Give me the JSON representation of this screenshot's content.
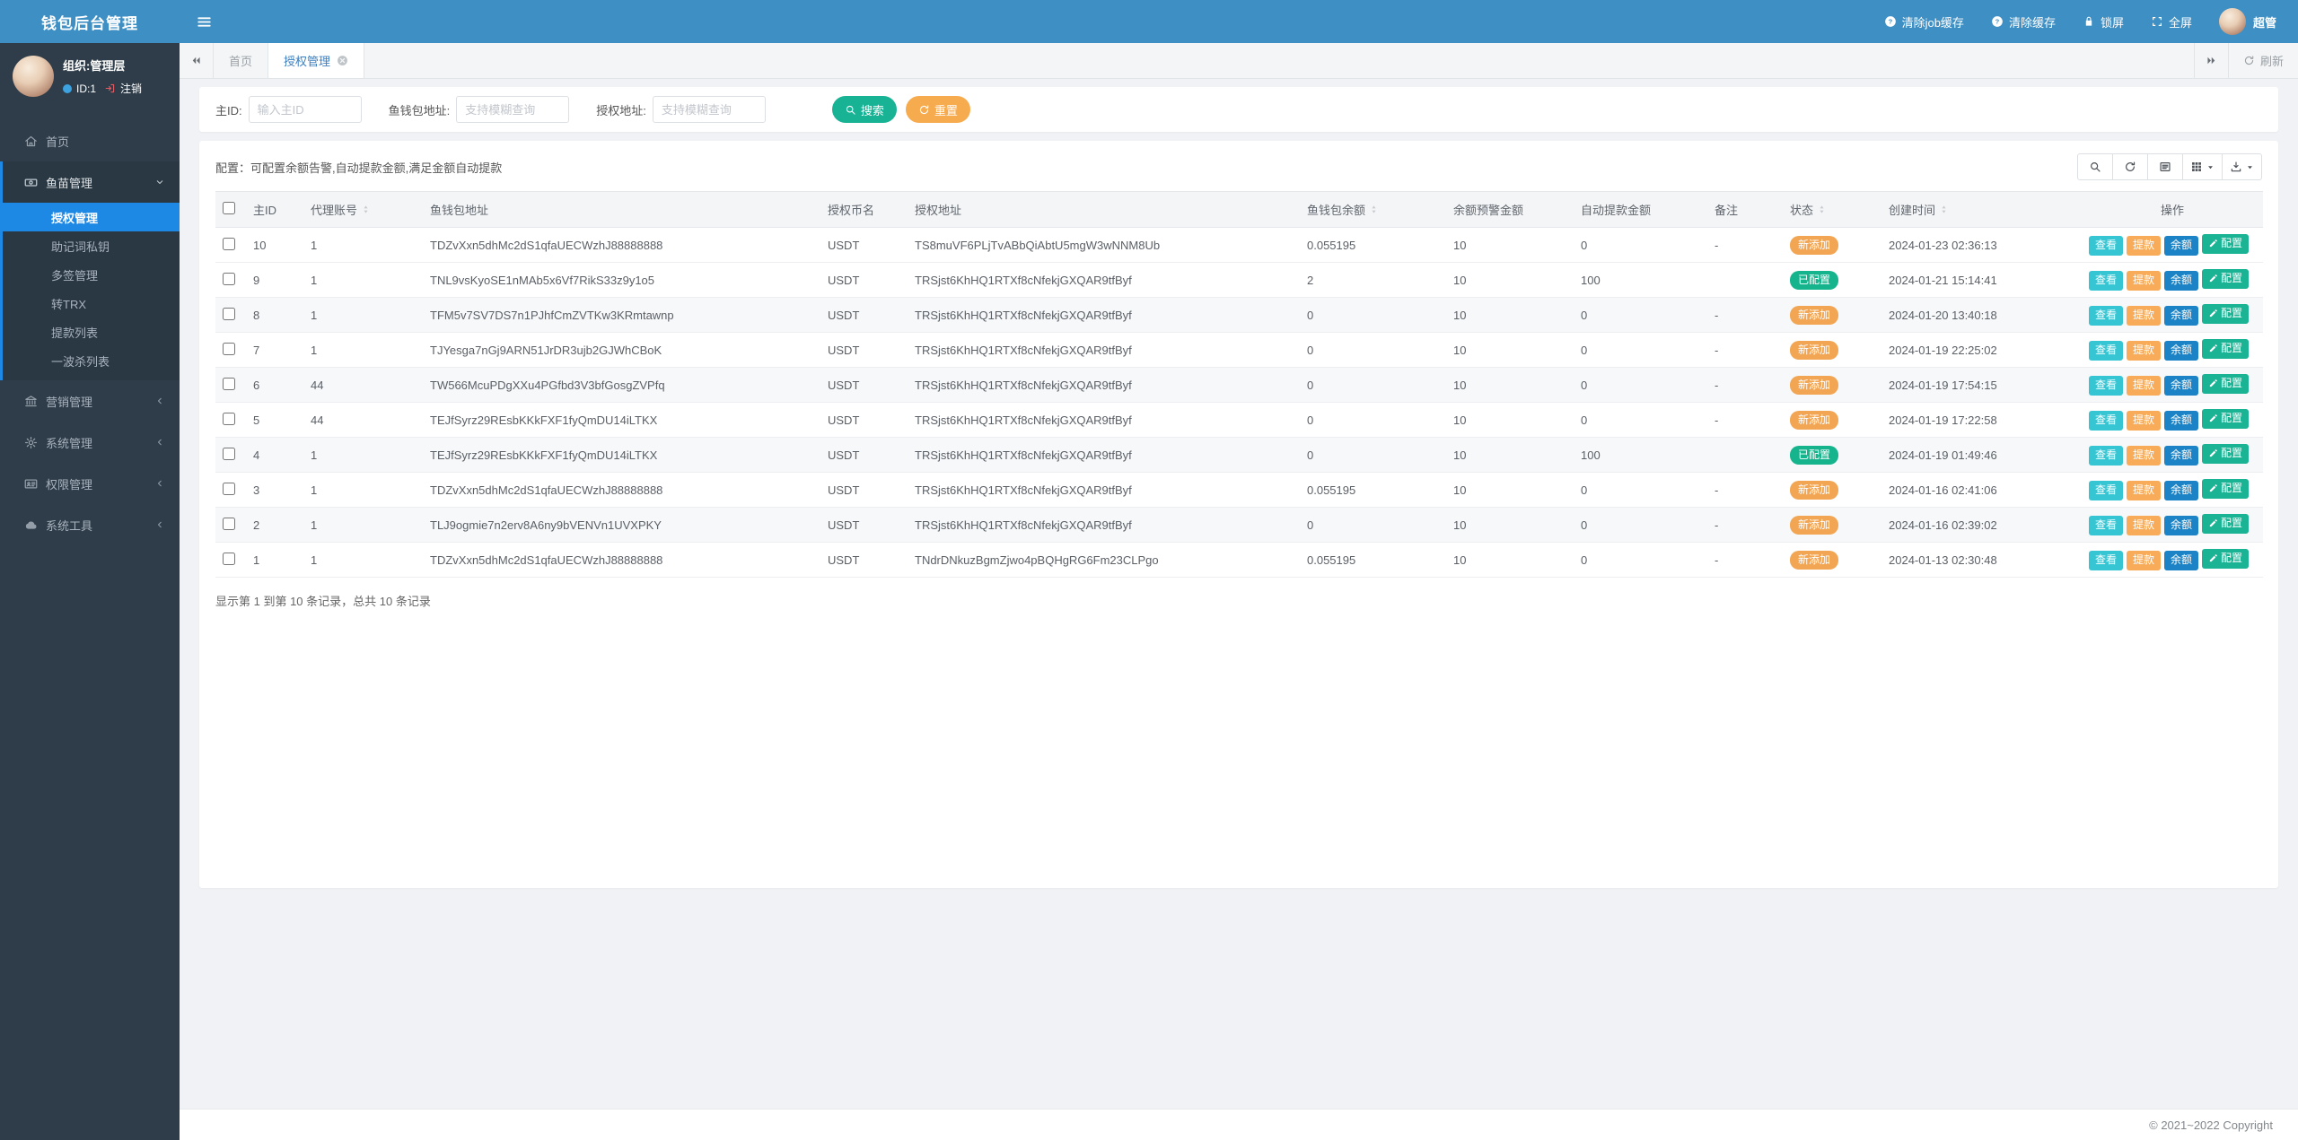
{
  "colors": {
    "navbar_blue": "#3d8fc4",
    "sidebar_dark": "#2e3d49",
    "menu_active_blue": "#1e88e5",
    "search_green": "#18b294",
    "reset_orange": "#f7ab4f",
    "badge_new_orange": "#f2a654",
    "badge_configured_green": "#15b48d",
    "op_view_teal": "#36c6d3",
    "op_withdraw_orange": "#f8ac59",
    "op_balance_blue": "#1c84c6",
    "op_config_green": "#1ab394"
  },
  "brand": {
    "title": "钱包后台管理"
  },
  "topbar": {
    "actions": [
      {
        "name": "clear-job-cache-button",
        "label": "清除job缓存",
        "icon": "question-circle-icon"
      },
      {
        "name": "clear-cache-button",
        "label": "清除缓存",
        "icon": "question-circle-icon"
      },
      {
        "name": "lock-screen-button",
        "label": "锁屏",
        "icon": "lock-icon"
      },
      {
        "name": "fullscreen-button",
        "label": "全屏",
        "icon": "expand-icon"
      }
    ],
    "username": "超管"
  },
  "sidebar": {
    "user": {
      "org": "组织:管理层",
      "id": "ID:1",
      "logout": "注销"
    },
    "menu": [
      {
        "name": "home",
        "label": "首页",
        "icon": "home-icon"
      },
      {
        "name": "fish-management",
        "label": "鱼苗管理",
        "icon": "money-icon",
        "expanded": true,
        "children": [
          {
            "name": "auth-management",
            "label": "授权管理",
            "active": true
          },
          {
            "name": "mnemonic-private-key",
            "label": "助记词私钥"
          },
          {
            "name": "multisig-management",
            "label": "多签管理"
          },
          {
            "name": "transfer-trx",
            "label": "转TRX"
          },
          {
            "name": "withdraw-list",
            "label": "提款列表"
          },
          {
            "name": "one-wave-kill-list",
            "label": "一波杀列表"
          }
        ]
      },
      {
        "name": "marketing-management",
        "label": "营销管理",
        "icon": "bank-icon"
      },
      {
        "name": "system-management",
        "label": "系统管理",
        "icon": "gear-icon"
      },
      {
        "name": "permission-management",
        "label": "权限管理",
        "icon": "idcard-icon"
      },
      {
        "name": "system-tools",
        "label": "系统工具",
        "icon": "cloud-icon"
      }
    ]
  },
  "tabbar": {
    "tabs": [
      {
        "name": "tab-home",
        "label": "首页",
        "active": false,
        "closable": false
      },
      {
        "name": "tab-auth-management",
        "label": "授权管理",
        "active": true,
        "closable": true
      }
    ],
    "refresh_label": "刷新"
  },
  "filters": {
    "fields": [
      {
        "name": "main-id",
        "label": "主ID:",
        "placeholder": "输入主ID"
      },
      {
        "name": "fish-wallet-address",
        "label": "鱼钱包地址:",
        "placeholder": "支持模糊查询"
      },
      {
        "name": "auth-address",
        "label": "授权地址:",
        "placeholder": "支持模糊查询"
      }
    ],
    "search_label": "搜索",
    "reset_label": "重置"
  },
  "table": {
    "config_note": "配置：可配置余额告警,自动提款金额,满足金额自动提款",
    "toolbar": [
      {
        "name": "toolbar-search-button",
        "icon": "search-icon",
        "caret": false
      },
      {
        "name": "toolbar-refresh-button",
        "icon": "refresh-icon",
        "caret": false
      },
      {
        "name": "toolbar-detail-view-button",
        "icon": "detail-view-icon",
        "caret": false
      },
      {
        "name": "toolbar-columns-button",
        "icon": "columns-icon",
        "caret": true
      },
      {
        "name": "toolbar-export-button",
        "icon": "export-icon",
        "caret": true
      }
    ],
    "columns": [
      {
        "label": "主ID",
        "sortable": false
      },
      {
        "label": "代理账号",
        "sortable": true
      },
      {
        "label": "鱼钱包地址",
        "sortable": false
      },
      {
        "label": "授权币名",
        "sortable": false
      },
      {
        "label": "授权地址",
        "sortable": false
      },
      {
        "label": "鱼钱包余额",
        "sortable": true
      },
      {
        "label": "余额预警金额",
        "sortable": false
      },
      {
        "label": "自动提款金额",
        "sortable": false
      },
      {
        "label": "备注",
        "sortable": false
      },
      {
        "label": "状态",
        "sortable": true
      },
      {
        "label": "创建时间",
        "sortable": true
      },
      {
        "label": "操作",
        "sortable": false,
        "align": "center"
      }
    ],
    "ops": [
      {
        "name": "view-button",
        "label": "查看",
        "type": "view"
      },
      {
        "name": "withdraw-button",
        "label": "提款",
        "type": "withdraw"
      },
      {
        "name": "balance-button",
        "label": "余额",
        "type": "balance"
      },
      {
        "name": "config-button",
        "label": "配置",
        "type": "config",
        "icon": "edit-icon"
      }
    ],
    "rows": [
      {
        "main_id": "10",
        "agent": "1",
        "wallet": "TDZvXxn5dhMc2dS1qfaUECWzhJ88888888",
        "coin": "USDT",
        "auth_address": "TS8muVF6PLjTvABbQiAbtU5mgW3wNNM8Ub",
        "balance": "0.055195",
        "warn_amount": "10",
        "auto_amount": "0",
        "remark": "-",
        "status": "新添加",
        "status_type": "new",
        "created_at": "2024-01-23 02:36:13"
      },
      {
        "main_id": "9",
        "agent": "1",
        "wallet": "TNL9vsKyoSE1nMAb5x6Vf7RikS33z9y1o5",
        "coin": "USDT",
        "auth_address": "TRSjst6KhHQ1RTXf8cNfekjGXQAR9tfByf",
        "balance": "2",
        "warn_amount": "10",
        "auto_amount": "100",
        "remark": "",
        "status": "已配置",
        "status_type": "configured",
        "created_at": "2024-01-21 15:14:41"
      },
      {
        "main_id": "8",
        "agent": "1",
        "wallet": "TFM5v7SV7DS7n1PJhfCmZVTKw3KRmtawnp",
        "coin": "USDT",
        "auth_address": "TRSjst6KhHQ1RTXf8cNfekjGXQAR9tfByf",
        "balance": "0",
        "warn_amount": "10",
        "auto_amount": "0",
        "remark": "-",
        "status": "新添加",
        "status_type": "new",
        "created_at": "2024-01-20 13:40:18"
      },
      {
        "main_id": "7",
        "agent": "1",
        "wallet": "TJYesga7nGj9ARN51JrDR3ujb2GJWhCBoK",
        "coin": "USDT",
        "auth_address": "TRSjst6KhHQ1RTXf8cNfekjGXQAR9tfByf",
        "balance": "0",
        "warn_amount": "10",
        "auto_amount": "0",
        "remark": "-",
        "status": "新添加",
        "status_type": "new",
        "created_at": "2024-01-19 22:25:02"
      },
      {
        "main_id": "6",
        "agent": "44",
        "wallet": "TW566McuPDgXXu4PGfbd3V3bfGosgZVPfq",
        "coin": "USDT",
        "auth_address": "TRSjst6KhHQ1RTXf8cNfekjGXQAR9tfByf",
        "balance": "0",
        "warn_amount": "10",
        "auto_amount": "0",
        "remark": "-",
        "status": "新添加",
        "status_type": "new",
        "created_at": "2024-01-19 17:54:15"
      },
      {
        "main_id": "5",
        "agent": "44",
        "wallet": "TEJfSyrz29REsbKKkFXF1fyQmDU14iLTKX",
        "coin": "USDT",
        "auth_address": "TRSjst6KhHQ1RTXf8cNfekjGXQAR9tfByf",
        "balance": "0",
        "warn_amount": "10",
        "auto_amount": "0",
        "remark": "-",
        "status": "新添加",
        "status_type": "new",
        "created_at": "2024-01-19 17:22:58"
      },
      {
        "main_id": "4",
        "agent": "1",
        "wallet": "TEJfSyrz29REsbKKkFXF1fyQmDU14iLTKX",
        "coin": "USDT",
        "auth_address": "TRSjst6KhHQ1RTXf8cNfekjGXQAR9tfByf",
        "balance": "0",
        "warn_amount": "10",
        "auto_amount": "100",
        "remark": "",
        "status": "已配置",
        "status_type": "configured",
        "created_at": "2024-01-19 01:49:46"
      },
      {
        "main_id": "3",
        "agent": "1",
        "wallet": "TDZvXxn5dhMc2dS1qfaUECWzhJ88888888",
        "coin": "USDT",
        "auth_address": "TRSjst6KhHQ1RTXf8cNfekjGXQAR9tfByf",
        "balance": "0.055195",
        "warn_amount": "10",
        "auto_amount": "0",
        "remark": "-",
        "status": "新添加",
        "status_type": "new",
        "created_at": "2024-01-16 02:41:06"
      },
      {
        "main_id": "2",
        "agent": "1",
        "wallet": "TLJ9ogmie7n2erv8A6ny9bVENVn1UVXPKY",
        "coin": "USDT",
        "auth_address": "TRSjst6KhHQ1RTXf8cNfekjGXQAR9tfByf",
        "balance": "0",
        "warn_amount": "10",
        "auto_amount": "0",
        "remark": "-",
        "status": "新添加",
        "status_type": "new",
        "created_at": "2024-01-16 02:39:02"
      },
      {
        "main_id": "1",
        "agent": "1",
        "wallet": "TDZvXxn5dhMc2dS1qfaUECWzhJ88888888",
        "coin": "USDT",
        "auth_address": "TNdrDNkuzBgmZjwo4pBQHgRG6Fm23CLPgo",
        "balance": "0.055195",
        "warn_amount": "10",
        "auto_amount": "0",
        "remark": "-",
        "status": "新添加",
        "status_type": "new",
        "created_at": "2024-01-13 02:30:48"
      }
    ],
    "summary": "显示第 1 到第 10 条记录，总共 10 条记录"
  },
  "footer": {
    "copyright": "© 2021~2022 Copyright"
  }
}
